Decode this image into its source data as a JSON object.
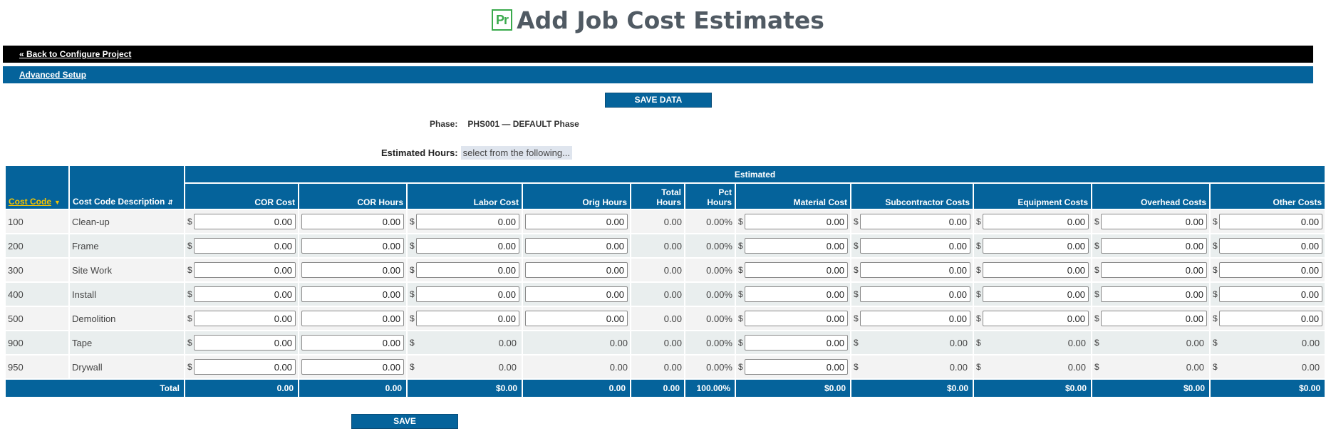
{
  "app": {
    "logo_text": "Pr",
    "title": "Add Job Cost Estimates"
  },
  "nav": {
    "back_link": "« Back to Configure Project",
    "advanced_link": "Advanced Setup"
  },
  "buttons": {
    "save_data": "SAVE DATA",
    "save": "SAVE"
  },
  "phase": {
    "label": "Phase:",
    "value": "PHS001 — DEFAULT Phase"
  },
  "estimated_hours": {
    "label": "Estimated Hours:",
    "select_text": "select from the following..."
  },
  "table": {
    "group_header": "Estimated",
    "headers": {
      "cost_code": "Cost Code",
      "description": "Cost Code Description",
      "cor_cost": "COR Cost",
      "cor_hours": "COR Hours",
      "labor_cost": "Labor Cost",
      "orig_hours": "Orig Hours",
      "total_hours_1": "Total",
      "total_hours_2": "Hours",
      "pct_hours_1": "Pct",
      "pct_hours_2": "Hours",
      "material_cost": "Material Cost",
      "subcontractor_costs": "Subcontractor Costs",
      "equipment_costs": "Equipment Costs",
      "overhead_costs": "Overhead Costs",
      "other_costs": "Other Costs"
    },
    "currency_symbol": "$",
    "rows": [
      {
        "code": "100",
        "desc": "Clean-up",
        "cor_cost": "0.00",
        "cor_hours": "0.00",
        "labor_cost": "0.00",
        "orig_hours": "0.00",
        "total_hours": "0.00",
        "pct_hours": "0.00%",
        "material": "0.00",
        "sub": "0.00",
        "equip": "0.00",
        "overhead": "0.00",
        "other": "0.00"
      },
      {
        "code": "200",
        "desc": "Frame",
        "cor_cost": "0.00",
        "cor_hours": "0.00",
        "labor_cost": "0.00",
        "orig_hours": "0.00",
        "total_hours": "0.00",
        "pct_hours": "0.00%",
        "material": "0.00",
        "sub": "0.00",
        "equip": "0.00",
        "overhead": "0.00",
        "other": "0.00"
      },
      {
        "code": "300",
        "desc": "Site Work",
        "cor_cost": "0.00",
        "cor_hours": "0.00",
        "labor_cost": "0.00",
        "orig_hours": "0.00",
        "total_hours": "0.00",
        "pct_hours": "0.00%",
        "material": "0.00",
        "sub": "0.00",
        "equip": "0.00",
        "overhead": "0.00",
        "other": "0.00"
      },
      {
        "code": "400",
        "desc": "Install",
        "cor_cost": "0.00",
        "cor_hours": "0.00",
        "labor_cost": "0.00",
        "orig_hours": "0.00",
        "total_hours": "0.00",
        "pct_hours": "0.00%",
        "material": "0.00",
        "sub": "0.00",
        "equip": "0.00",
        "overhead": "0.00",
        "other": "0.00"
      },
      {
        "code": "500",
        "desc": "Demolition",
        "cor_cost": "0.00",
        "cor_hours": "0.00",
        "labor_cost": "0.00",
        "orig_hours": "0.00",
        "total_hours": "0.00",
        "pct_hours": "0.00%",
        "material": "0.00",
        "sub": "0.00",
        "equip": "0.00",
        "overhead": "0.00",
        "other": "0.00"
      },
      {
        "code": "900",
        "desc": "Tape",
        "cor_cost": "0.00",
        "cor_hours": "0.00",
        "labor_cost": "0.00",
        "orig_hours": "0.00",
        "total_hours": "0.00",
        "pct_hours": "0.00%",
        "material": "0.00",
        "sub": "0.00",
        "equip": "0.00",
        "overhead": "0.00",
        "other": "0.00"
      },
      {
        "code": "950",
        "desc": "Drywall",
        "cor_cost": "0.00",
        "cor_hours": "0.00",
        "labor_cost": "0.00",
        "orig_hours": "0.00",
        "total_hours": "0.00",
        "pct_hours": "0.00%",
        "material": "0.00",
        "sub": "0.00",
        "equip": "0.00",
        "overhead": "0.00",
        "other": "0.00"
      }
    ],
    "totals": {
      "label": "Total",
      "cor_cost": "0.00",
      "cor_hours": "0.00",
      "labor_cost": "$0.00",
      "orig_hours": "0.00",
      "total_hours": "0.00",
      "pct_hours": "100.00%",
      "material": "$0.00",
      "sub": "$0.00",
      "equip": "$0.00",
      "overhead": "$0.00",
      "other": "$0.00"
    }
  }
}
